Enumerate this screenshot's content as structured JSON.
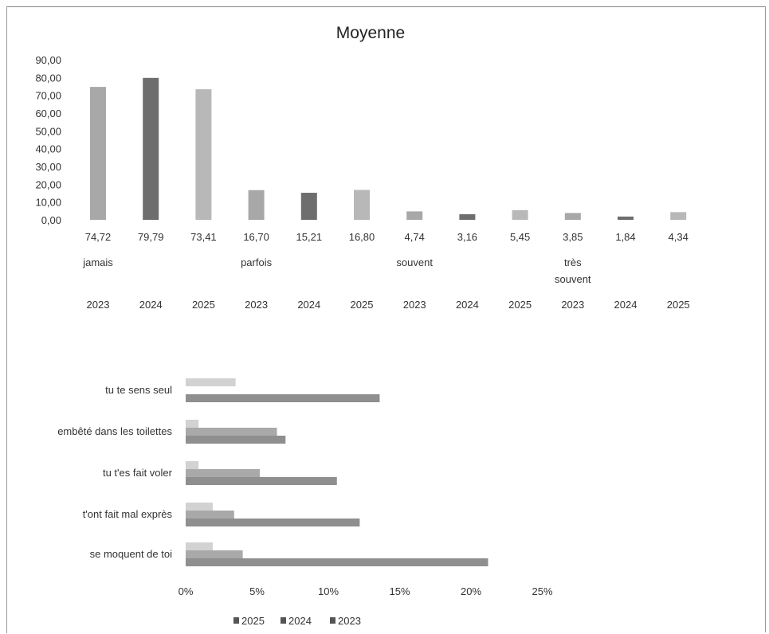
{
  "chart_data": [
    {
      "type": "bar",
      "title": "Moyenne",
      "ylim": [
        0,
        90
      ],
      "yticks": [
        "90,00",
        "80,00",
        "70,00",
        "60,00",
        "50,00",
        "40,00",
        "30,00",
        "20,00",
        "10,00",
        "0,00"
      ],
      "groups": [
        "jamais",
        "parfois",
        "souvent",
        "très souvent"
      ],
      "years": [
        "2023",
        "2024",
        "2025"
      ],
      "values": [
        74.72,
        79.79,
        73.41,
        16.7,
        15.21,
        16.8,
        4.74,
        3.16,
        5.45,
        3.85,
        1.84,
        4.34
      ],
      "labels": [
        "74,72",
        "79,79",
        "73,41",
        "16,70",
        "15,21",
        "16,80",
        "4,74",
        "3,16",
        "5,45",
        "3,85",
        "1,84",
        "4,34"
      ],
      "colors": {
        "2023": "#a8a8a8",
        "2024": "#6e6e6e",
        "2025": "#b8b8b8"
      }
    },
    {
      "type": "bar",
      "orientation": "horizontal",
      "categories": [
        "tu te sens seul",
        "embêté dans les toilettes",
        "tu t'es fait voler",
        "t'ont fait mal exprès",
        "se moquent de toi"
      ],
      "series": [
        {
          "name": "2025",
          "values": [
            3.5,
            0.9,
            0.9,
            1.9,
            1.9
          ],
          "color": "#d2d2d2"
        },
        {
          "name": "2024",
          "values": [
            0,
            6.4,
            5.2,
            3.4,
            4.0
          ],
          "color": "#a9a9a9"
        },
        {
          "name": "2023",
          "values": [
            13.6,
            7.0,
            10.6,
            12.2,
            21.2
          ],
          "color": "#8f8f8f"
        }
      ],
      "xlim": [
        0,
        25
      ],
      "xticks": [
        "0%",
        "5%",
        "10%",
        "15%",
        "20%",
        "25%"
      ],
      "legend_position": "bottom"
    }
  ]
}
